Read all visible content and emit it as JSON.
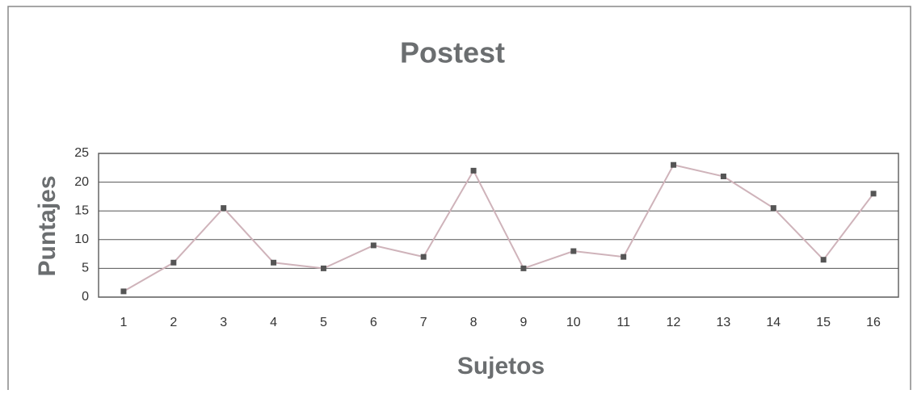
{
  "chart_data": {
    "type": "line",
    "title": "Postest",
    "x_label": "Sujetos",
    "y_label": "Puntajes",
    "categories": [
      "1",
      "2",
      "3",
      "4",
      "5",
      "6",
      "7",
      "8",
      "9",
      "10",
      "11",
      "12",
      "13",
      "14",
      "15",
      "16"
    ],
    "series": [
      {
        "name": "Postest",
        "color": "#cfb3ba",
        "marker_color": "#555555",
        "values": [
          1,
          6,
          15.5,
          6,
          5,
          9,
          7,
          22,
          5,
          8,
          7,
          23,
          21,
          15.5,
          6.5,
          18
        ]
      }
    ],
    "ylim": [
      0,
      25
    ],
    "yticks": [
      0,
      5,
      10,
      15,
      20,
      25
    ],
    "grid": true
  }
}
